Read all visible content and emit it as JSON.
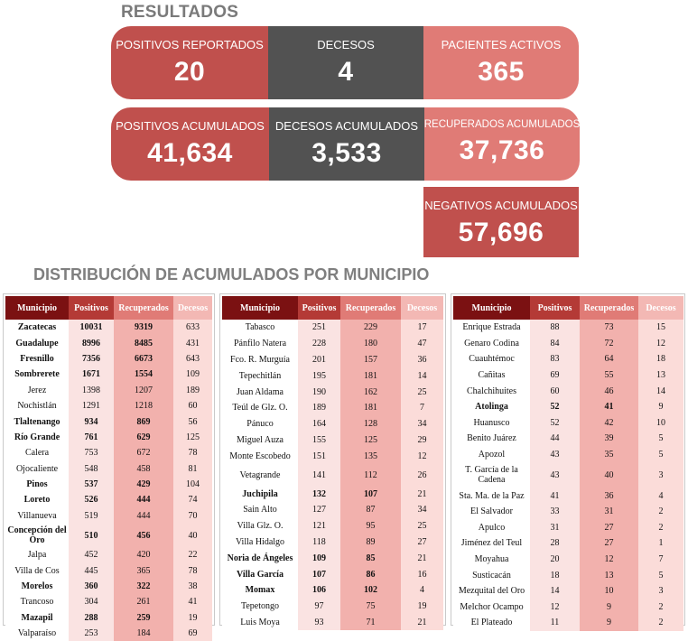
{
  "header": {
    "title": "RESULTADOS"
  },
  "cards": {
    "positivos_reportados": {
      "label": "POSITIVOS REPORTADOS",
      "value": "20"
    },
    "decesos": {
      "label": "DECESOS",
      "value": "4"
    },
    "pacientes_activos": {
      "label": "PACIENTES ACTIVOS",
      "value": "365"
    },
    "positivos_acumulados": {
      "label": "POSITIVOS ACUMULADOS",
      "value": "41,634"
    },
    "decesos_acumulados": {
      "label": "DECESOS ACUMULADOS",
      "value": "3,533"
    },
    "recuperados_acumulados": {
      "label": "RECUPERADOS ACUMULADOS",
      "value": "37,736"
    },
    "negativos_acumulados": {
      "label": "NEGATIVOS ACUMULADOS",
      "value": "57,696"
    }
  },
  "distribution": {
    "title": "DISTRIBUCIÓN DE ACUMULADOS POR MUNICIPIO",
    "headers": [
      "Municipio",
      "Positivos",
      "Recuperados",
      "Decesos"
    ],
    "tables": [
      [
        [
          "Zacatecas",
          "10031",
          "9319",
          "633"
        ],
        [
          "Guadalupe",
          "8996",
          "8485",
          "431"
        ],
        [
          "Fresnillo",
          "7356",
          "6673",
          "643"
        ],
        [
          "Sombrerete",
          "1671",
          "1554",
          "109"
        ],
        [
          "Jerez",
          "1398",
          "1207",
          "189"
        ],
        [
          "Nochistlán",
          "1291",
          "1218",
          "60"
        ],
        [
          "Tlaltenango",
          "934",
          "869",
          "56"
        ],
        [
          "Río Grande",
          "761",
          "629",
          "125"
        ],
        [
          "Calera",
          "753",
          "672",
          "78"
        ],
        [
          "Ojocaliente",
          "548",
          "458",
          "81"
        ],
        [
          "Pinos",
          "537",
          "429",
          "104"
        ],
        [
          "Loreto",
          "526",
          "444",
          "74"
        ],
        [
          "Villanueva",
          "519",
          "444",
          "70"
        ],
        [
          "Concepción del Oro",
          "510",
          "456",
          "40"
        ],
        [
          "Jalpa",
          "452",
          "420",
          "22"
        ],
        [
          "Villa de Cos",
          "445",
          "365",
          "78"
        ],
        [
          "Morelos",
          "360",
          "322",
          "38"
        ],
        [
          "Trancoso",
          "304",
          "261",
          "41"
        ],
        [
          "Mazapil",
          "288",
          "259",
          "19"
        ],
        [
          "Valparaíso",
          "253",
          "184",
          "69"
        ]
      ],
      [
        [
          "Tabasco",
          "251",
          "229",
          "17"
        ],
        [
          "Pánfilo Natera",
          "228",
          "180",
          "47"
        ],
        [
          "Fco. R. Murguía",
          "201",
          "157",
          "36"
        ],
        [
          "Tepechitlán",
          "195",
          "181",
          "14"
        ],
        [
          "Juan Aldama",
          "190",
          "162",
          "25"
        ],
        [
          "Teúl de Glz. O.",
          "189",
          "181",
          "7"
        ],
        [
          "Pánuco",
          "164",
          "128",
          "34"
        ],
        [
          "Miguel Auza",
          "155",
          "125",
          "29"
        ],
        [
          "Monte Escobedo",
          "151",
          "135",
          "12"
        ],
        [
          "Vetagrande",
          "141",
          "112",
          "26"
        ],
        [
          "Juchipila",
          "132",
          "107",
          "21"
        ],
        [
          "Sain Alto",
          "127",
          "87",
          "34"
        ],
        [
          "Villa Glz. O.",
          "121",
          "95",
          "25"
        ],
        [
          "Villa Hidalgo",
          "118",
          "89",
          "27"
        ],
        [
          "Noria de Ángeles",
          "109",
          "85",
          "21"
        ],
        [
          "Villa García",
          "107",
          "86",
          "16"
        ],
        [
          "Momax",
          "106",
          "102",
          "4"
        ],
        [
          "Tepetongo",
          "97",
          "75",
          "19"
        ],
        [
          "Luis Moya",
          "93",
          "71",
          "21"
        ]
      ],
      [
        [
          "Enrique Estrada",
          "88",
          "73",
          "15"
        ],
        [
          "Genaro Codina",
          "84",
          "72",
          "12"
        ],
        [
          "Cuauhtémoc",
          "83",
          "64",
          "18"
        ],
        [
          "Cañitas",
          "69",
          "55",
          "13"
        ],
        [
          "Chalchihuites",
          "60",
          "46",
          "14"
        ],
        [
          "Atolinga",
          "52",
          "41",
          "9"
        ],
        [
          "Huanusco",
          "52",
          "42",
          "10"
        ],
        [
          "Benito Juárez",
          "44",
          "39",
          "5"
        ],
        [
          "Apozol",
          "43",
          "35",
          "5"
        ],
        [
          "T. García de la Cadena",
          "43",
          "40",
          "3"
        ],
        [
          "Sta. Ma. de la Paz",
          "41",
          "36",
          "4"
        ],
        [
          "El Salvador",
          "33",
          "31",
          "2"
        ],
        [
          "Apulco",
          "31",
          "27",
          "2"
        ],
        [
          "Jiménez del Teul",
          "28",
          "27",
          "1"
        ],
        [
          "Moyahua",
          "20",
          "12",
          "7"
        ],
        [
          "Susticacán",
          "18",
          "13",
          "5"
        ],
        [
          "Mezquital del Oro",
          "14",
          "10",
          "3"
        ],
        [
          "Melchor Ocampo",
          "12",
          "9",
          "2"
        ],
        [
          "El Plateado",
          "11",
          "9",
          "2"
        ]
      ]
    ]
  }
}
